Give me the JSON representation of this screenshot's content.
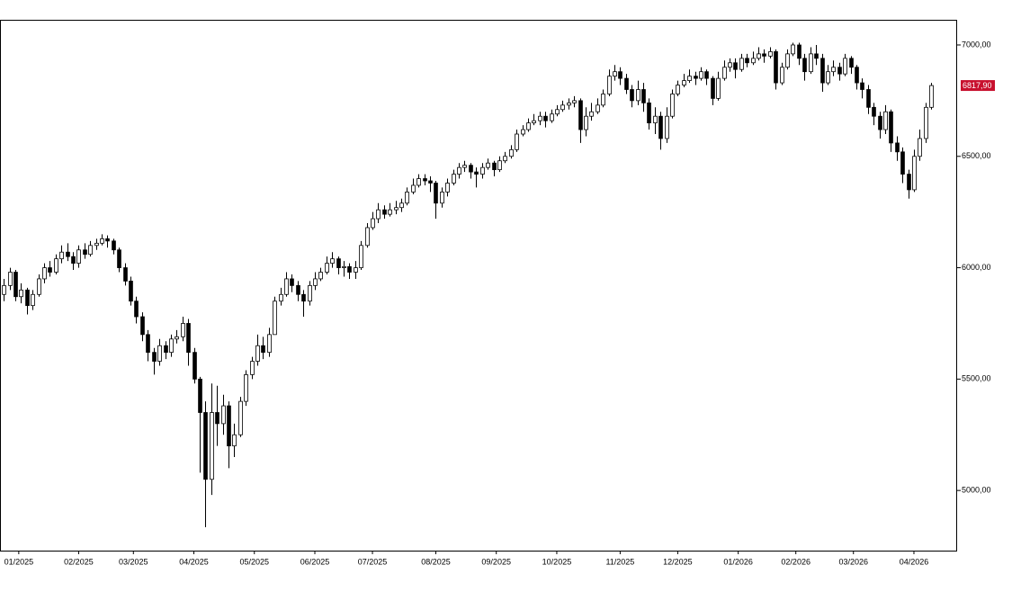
{
  "chart_data": {
    "type": "candlestick",
    "color_up": "#ffffff",
    "color_down": "#000000",
    "color_edge": "#000000",
    "last_price": {
      "value": 6817.9,
      "label": "6817,90"
    },
    "last_price_color": "#c8102e",
    "xlim": [
      -0.5,
      165.5
    ],
    "xticks": [
      {
        "value": 2.6,
        "label": "01/2025"
      },
      {
        "value": 13,
        "label": "02/2025"
      },
      {
        "value": 22.5,
        "label": "03/2025"
      },
      {
        "value": 33,
        "label": "04/2025"
      },
      {
        "value": 43.5,
        "label": "05/2025"
      },
      {
        "value": 54,
        "label": "06/2025"
      },
      {
        "value": 64,
        "label": "07/2025"
      },
      {
        "value": 75,
        "label": "08/2025"
      },
      {
        "value": 85.5,
        "label": "09/2025"
      },
      {
        "value": 96,
        "label": "10/2025"
      },
      {
        "value": 107,
        "label": "11/2025"
      },
      {
        "value": 117,
        "label": "12/2025"
      },
      {
        "value": 127.5,
        "label": "01/2026"
      },
      {
        "value": 137.5,
        "label": "02/2026"
      },
      {
        "value": 147.5,
        "label": "03/2026"
      },
      {
        "value": 158,
        "label": "04/2026"
      }
    ],
    "ylim": [
      4730,
      7113
    ],
    "yticks": [
      {
        "value": 5000,
        "label": "5000,00"
      },
      {
        "value": 5500,
        "label": "5500,00"
      },
      {
        "value": 6000,
        "label": "6000,00"
      },
      {
        "value": 6500,
        "label": "6500,00"
      },
      {
        "value": 7000,
        "label": "7000,00"
      }
    ],
    "ohlc": [
      [
        5880,
        5950,
        5850,
        5920
      ],
      [
        5920,
        6000,
        5900,
        5980
      ],
      [
        5980,
        5990,
        5850,
        5870
      ],
      [
        5870,
        5930,
        5840,
        5900
      ],
      [
        5900,
        5910,
        5790,
        5830
      ],
      [
        5830,
        5900,
        5810,
        5880
      ],
      [
        5880,
        5970,
        5870,
        5950
      ],
      [
        5950,
        6020,
        5930,
        6000
      ],
      [
        6000,
        6030,
        5960,
        5980
      ],
      [
        5980,
        6060,
        5970,
        6040
      ],
      [
        6040,
        6100,
        6020,
        6070
      ],
      [
        6070,
        6110,
        6030,
        6050
      ],
      [
        6050,
        6070,
        5990,
        6020
      ],
      [
        6020,
        6100,
        6000,
        6080
      ],
      [
        6080,
        6110,
        6040,
        6060
      ],
      [
        6060,
        6120,
        6050,
        6100
      ],
      [
        6100,
        6130,
        6080,
        6110
      ],
      [
        6110,
        6150,
        6100,
        6130
      ],
      [
        6130,
        6145,
        6090,
        6120
      ],
      [
        6120,
        6130,
        6060,
        6080
      ],
      [
        6080,
        6090,
        5980,
        6000
      ],
      [
        6000,
        6020,
        5920,
        5940
      ],
      [
        5940,
        5960,
        5830,
        5850
      ],
      [
        5850,
        5870,
        5750,
        5780
      ],
      [
        5780,
        5800,
        5670,
        5700
      ],
      [
        5700,
        5720,
        5580,
        5620
      ],
      [
        5620,
        5640,
        5520,
        5580
      ],
      [
        5580,
        5680,
        5560,
        5650
      ],
      [
        5650,
        5670,
        5590,
        5620
      ],
      [
        5620,
        5700,
        5600,
        5680
      ],
      [
        5680,
        5720,
        5660,
        5690
      ],
      [
        5690,
        5780,
        5670,
        5750
      ],
      [
        5750,
        5770,
        5560,
        5620
      ],
      [
        5620,
        5640,
        5480,
        5500
      ],
      [
        5500,
        5510,
        5080,
        5350
      ],
      [
        5350,
        5400,
        4835,
        5050
      ],
      [
        5050,
        5480,
        4980,
        5350
      ],
      [
        5350,
        5470,
        5200,
        5300
      ],
      [
        5300,
        5430,
        5250,
        5380
      ],
      [
        5380,
        5400,
        5100,
        5200
      ],
      [
        5200,
        5300,
        5150,
        5250
      ],
      [
        5250,
        5420,
        5240,
        5400
      ],
      [
        5400,
        5540,
        5380,
        5520
      ],
      [
        5520,
        5600,
        5500,
        5580
      ],
      [
        5580,
        5700,
        5560,
        5650
      ],
      [
        5650,
        5690,
        5590,
        5620
      ],
      [
        5620,
        5730,
        5600,
        5700
      ],
      [
        5700,
        5870,
        5700,
        5850
      ],
      [
        5850,
        5910,
        5830,
        5880
      ],
      [
        5880,
        5980,
        5870,
        5950
      ],
      [
        5950,
        5970,
        5890,
        5920
      ],
      [
        5920,
        5940,
        5850,
        5880
      ],
      [
        5880,
        5900,
        5780,
        5850
      ],
      [
        5850,
        5940,
        5830,
        5920
      ],
      [
        5920,
        5980,
        5900,
        5950
      ],
      [
        5950,
        6000,
        5940,
        5980
      ],
      [
        5980,
        6050,
        5970,
        6020
      ],
      [
        6020,
        6070,
        6000,
        6040
      ],
      [
        6040,
        6050,
        5970,
        6000
      ],
      [
        6000,
        6030,
        5960,
        6005
      ],
      [
        6005,
        6020,
        5950,
        5980
      ],
      [
        5980,
        6030,
        5950,
        6000
      ],
      [
        6000,
        6120,
        5990,
        6100
      ],
      [
        6100,
        6200,
        6090,
        6180
      ],
      [
        6180,
        6250,
        6170,
        6220
      ],
      [
        6220,
        6290,
        6200,
        6260
      ],
      [
        6260,
        6280,
        6220,
        6240
      ],
      [
        6240,
        6290,
        6230,
        6260
      ],
      [
        6260,
        6300,
        6240,
        6270
      ],
      [
        6270,
        6310,
        6250,
        6290
      ],
      [
        6290,
        6360,
        6280,
        6340
      ],
      [
        6340,
        6400,
        6330,
        6370
      ],
      [
        6370,
        6420,
        6360,
        6400
      ],
      [
        6400,
        6420,
        6370,
        6390
      ],
      [
        6390,
        6410,
        6340,
        6380
      ],
      [
        6380,
        6390,
        6220,
        6290
      ],
      [
        6290,
        6360,
        6270,
        6340
      ],
      [
        6340,
        6400,
        6320,
        6380
      ],
      [
        6380,
        6440,
        6370,
        6420
      ],
      [
        6420,
        6470,
        6400,
        6450
      ],
      [
        6450,
        6480,
        6430,
        6460
      ],
      [
        6460,
        6470,
        6400,
        6430
      ],
      [
        6430,
        6450,
        6360,
        6420
      ],
      [
        6420,
        6470,
        6400,
        6450
      ],
      [
        6450,
        6490,
        6440,
        6470
      ],
      [
        6470,
        6480,
        6410,
        6440
      ],
      [
        6440,
        6500,
        6430,
        6480
      ],
      [
        6480,
        6520,
        6470,
        6500
      ],
      [
        6500,
        6550,
        6490,
        6530
      ],
      [
        6530,
        6620,
        6520,
        6600
      ],
      [
        6600,
        6640,
        6590,
        6620
      ],
      [
        6620,
        6670,
        6610,
        6650
      ],
      [
        6650,
        6690,
        6640,
        6660
      ],
      [
        6660,
        6700,
        6640,
        6680
      ],
      [
        6680,
        6700,
        6630,
        6660
      ],
      [
        6660,
        6710,
        6650,
        6690
      ],
      [
        6690,
        6730,
        6680,
        6710
      ],
      [
        6710,
        6750,
        6700,
        6730
      ],
      [
        6730,
        6760,
        6710,
        6740
      ],
      [
        6740,
        6770,
        6720,
        6750
      ],
      [
        6750,
        6760,
        6560,
        6620
      ],
      [
        6620,
        6720,
        6590,
        6680
      ],
      [
        6680,
        6740,
        6660,
        6700
      ],
      [
        6700,
        6760,
        6690,
        6730
      ],
      [
        6730,
        6800,
        6720,
        6780
      ],
      [
        6780,
        6890,
        6770,
        6860
      ],
      [
        6860,
        6910,
        6840,
        6880
      ],
      [
        6880,
        6900,
        6820,
        6850
      ],
      [
        6850,
        6870,
        6780,
        6800
      ],
      [
        6800,
        6820,
        6720,
        6750
      ],
      [
        6750,
        6840,
        6730,
        6800
      ],
      [
        6800,
        6830,
        6700,
        6740
      ],
      [
        6740,
        6760,
        6620,
        6650
      ],
      [
        6650,
        6720,
        6600,
        6680
      ],
      [
        6680,
        6700,
        6530,
        6580
      ],
      [
        6580,
        6720,
        6560,
        6680
      ],
      [
        6680,
        6800,
        6670,
        6780
      ],
      [
        6780,
        6840,
        6770,
        6820
      ],
      [
        6820,
        6870,
        6810,
        6840
      ],
      [
        6840,
        6890,
        6830,
        6860
      ],
      [
        6860,
        6880,
        6820,
        6850
      ],
      [
        6850,
        6900,
        6840,
        6880
      ],
      [
        6880,
        6890,
        6820,
        6850
      ],
      [
        6850,
        6860,
        6730,
        6760
      ],
      [
        6760,
        6880,
        6750,
        6850
      ],
      [
        6850,
        6930,
        6840,
        6900
      ],
      [
        6900,
        6940,
        6880,
        6920
      ],
      [
        6920,
        6940,
        6850,
        6890
      ],
      [
        6890,
        6960,
        6880,
        6940
      ],
      [
        6940,
        6960,
        6900,
        6920
      ],
      [
        6920,
        6970,
        6910,
        6940
      ],
      [
        6940,
        6990,
        6930,
        6960
      ],
      [
        6960,
        6980,
        6920,
        6950
      ],
      [
        6950,
        6990,
        6940,
        6970
      ],
      [
        6970,
        6980,
        6800,
        6830
      ],
      [
        6830,
        6920,
        6820,
        6900
      ],
      [
        6900,
        6980,
        6890,
        6960
      ],
      [
        6960,
        7010,
        6950,
        7000
      ],
      [
        7000,
        7010,
        6910,
        6940
      ],
      [
        6940,
        6960,
        6840,
        6880
      ],
      [
        6880,
        6990,
        6870,
        6960
      ],
      [
        6960,
        7000,
        6910,
        6940
      ],
      [
        6940,
        6960,
        6790,
        6830
      ],
      [
        6830,
        6910,
        6820,
        6880
      ],
      [
        6880,
        6930,
        6860,
        6900
      ],
      [
        6900,
        6920,
        6840,
        6870
      ],
      [
        6870,
        6960,
        6860,
        6940
      ],
      [
        6940,
        6950,
        6870,
        6900
      ],
      [
        6900,
        6910,
        6800,
        6830
      ],
      [
        6830,
        6850,
        6760,
        6800
      ],
      [
        6800,
        6820,
        6690,
        6720
      ],
      [
        6720,
        6740,
        6640,
        6680
      ],
      [
        6680,
        6700,
        6580,
        6620
      ],
      [
        6620,
        6730,
        6600,
        6700
      ],
      [
        6700,
        6710,
        6520,
        6560
      ],
      [
        6560,
        6590,
        6480,
        6520
      ],
      [
        6520,
        6540,
        6380,
        6420
      ],
      [
        6420,
        6440,
        6310,
        6350
      ],
      [
        6350,
        6530,
        6340,
        6500
      ],
      [
        6500,
        6620,
        6480,
        6580
      ],
      [
        6580,
        6740,
        6560,
        6720
      ],
      [
        6720,
        6830,
        6710,
        6817.9
      ]
    ]
  }
}
